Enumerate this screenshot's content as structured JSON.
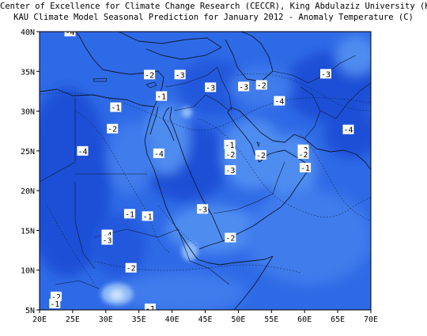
{
  "title_line1": "Center of Excellence for Climate Change Research (CECCR), King Abdulaziz University (KAU)",
  "title_line2": "KAU Climate Model Seasonal Prediction for January 2012 - Anomaly Temperature (C)",
  "chart_data": {
    "type": "contour-map",
    "quantity": "Anomaly Temperature (C)",
    "xlim": [
      20,
      70
    ],
    "ylim": [
      5,
      40
    ],
    "x_ticks": [
      "20E",
      "25E",
      "30E",
      "35E",
      "40E",
      "45E",
      "50E",
      "55E",
      "60E",
      "65E",
      "70E"
    ],
    "y_ticks": [
      "5N",
      "10N",
      "15N",
      "20N",
      "25N",
      "30N",
      "35N",
      "40N"
    ],
    "colors": {
      "deep": "#1f50d6",
      "mid": "#2f6ae6",
      "light": "#4f8cf0",
      "pale": "#8fbaf7",
      "palest": "#c8e0fb",
      "coast": "#0b1a33"
    },
    "contour_labels": [
      {
        "lon": 24.6,
        "lat": 40.0,
        "value": "-4"
      },
      {
        "lon": 36.6,
        "lat": 34.6,
        "value": "-2"
      },
      {
        "lon": 41.2,
        "lat": 34.6,
        "value": "-3"
      },
      {
        "lon": 45.8,
        "lat": 33.0,
        "value": "-3"
      },
      {
        "lon": 50.8,
        "lat": 33.1,
        "value": "-3"
      },
      {
        "lon": 53.5,
        "lat": 33.3,
        "value": "-2"
      },
      {
        "lon": 63.2,
        "lat": 34.7,
        "value": "-3"
      },
      {
        "lon": 38.4,
        "lat": 31.9,
        "value": "-1"
      },
      {
        "lon": 31.5,
        "lat": 30.5,
        "value": "-1"
      },
      {
        "lon": 56.2,
        "lat": 31.3,
        "value": "-4"
      },
      {
        "lon": 31.0,
        "lat": 27.8,
        "value": "-2"
      },
      {
        "lon": 66.6,
        "lat": 27.7,
        "value": "-4"
      },
      {
        "lon": 26.5,
        "lat": 25.0,
        "value": "-4"
      },
      {
        "lon": 38.0,
        "lat": 24.7,
        "value": "-4"
      },
      {
        "lon": 48.7,
        "lat": 25.8,
        "value": "-1"
      },
      {
        "lon": 48.8,
        "lat": 24.6,
        "value": "-2"
      },
      {
        "lon": 53.4,
        "lat": 24.5,
        "value": "-2"
      },
      {
        "lon": 59.8,
        "lat": 25.2,
        "value": "-3"
      },
      {
        "lon": 59.8,
        "lat": 24.6,
        "value": "-2"
      },
      {
        "lon": 48.8,
        "lat": 22.6,
        "value": "-3"
      },
      {
        "lon": 60.1,
        "lat": 22.9,
        "value": "-1"
      },
      {
        "lon": 44.6,
        "lat": 17.7,
        "value": "-3"
      },
      {
        "lon": 33.6,
        "lat": 17.1,
        "value": "-1"
      },
      {
        "lon": 36.3,
        "lat": 16.8,
        "value": "-1"
      },
      {
        "lon": 30.2,
        "lat": 14.5,
        "value": "-4"
      },
      {
        "lon": 30.2,
        "lat": 13.8,
        "value": "-3"
      },
      {
        "lon": 48.8,
        "lat": 14.1,
        "value": "-2"
      },
      {
        "lon": 33.8,
        "lat": 10.3,
        "value": "-2"
      },
      {
        "lon": 22.5,
        "lat": 6.7,
        "value": "-2"
      },
      {
        "lon": 22.3,
        "lat": 5.8,
        "value": "-1"
      },
      {
        "lon": 36.7,
        "lat": 5.2,
        "value": "-1"
      }
    ]
  }
}
